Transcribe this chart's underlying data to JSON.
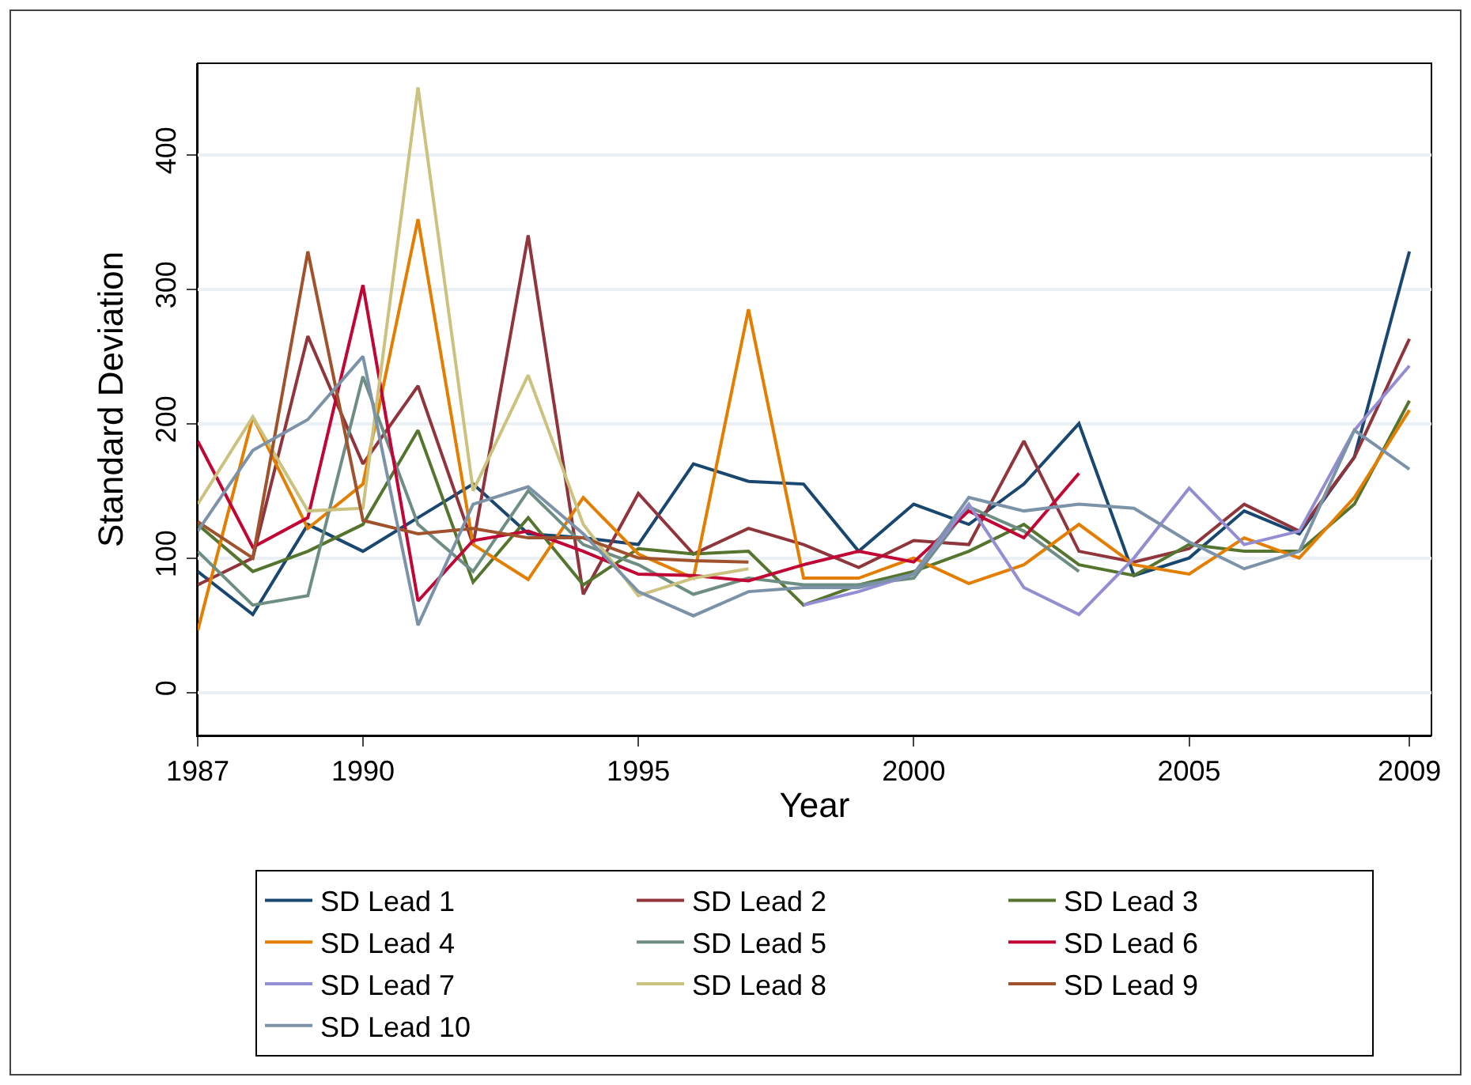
{
  "chart_data": {
    "type": "line",
    "xlabel": "Year",
    "ylabel": "Standard Deviation",
    "x": [
      1987,
      1988,
      1989,
      1990,
      1991,
      1992,
      1993,
      1994,
      1995,
      1996,
      1997,
      1998,
      1999,
      2000,
      2001,
      2002,
      2003,
      2004,
      2005,
      2006,
      2007,
      2008,
      2009
    ],
    "xlim": [
      1987,
      2009.4
    ],
    "xticks": [
      1987,
      1990,
      1995,
      2000,
      2005,
      2009
    ],
    "ylim": [
      -32,
      468
    ],
    "yticks": [
      0,
      100,
      200,
      300,
      400
    ],
    "grid": "y",
    "legend": "bottom",
    "marker": "none",
    "line_style": "solid",
    "series": [
      {
        "name": "SD Lead 1",
        "color": "#1a476f",
        "values": [
          90,
          58,
          125,
          105,
          130,
          155,
          118,
          115,
          110,
          170,
          157,
          155,
          105,
          140,
          125,
          155,
          200,
          87,
          100,
          135,
          118,
          175,
          328
        ]
      },
      {
        "name": "SD Lead 2",
        "color": "#90353b",
        "values": [
          80,
          100,
          265,
          170,
          228,
          110,
          340,
          73,
          148,
          103,
          122,
          110,
          93,
          113,
          110,
          187,
          105,
          97,
          107,
          140,
          120,
          175,
          263
        ]
      },
      {
        "name": "SD Lead 3",
        "color": "#55752f",
        "values": [
          125,
          90,
          105,
          125,
          195,
          82,
          130,
          80,
          107,
          103,
          105,
          65,
          80,
          90,
          105,
          125,
          95,
          87,
          110,
          105,
          105,
          140,
          217
        ]
      },
      {
        "name": "SD Lead 4",
        "color": "#e37e00",
        "values": [
          46,
          205,
          122,
          155,
          352,
          110,
          84,
          145,
          103,
          85,
          285,
          85,
          85,
          100,
          81,
          95,
          125,
          95,
          88,
          115,
          100,
          145,
          210
        ]
      },
      {
        "name": "SD Lead 5",
        "color": "#6e8e84",
        "values": [
          105,
          65,
          72,
          235,
          125,
          90,
          150,
          110,
          95,
          73,
          85,
          80,
          80,
          85,
          138,
          120,
          90,
          null,
          null,
          null,
          null,
          null,
          null
        ]
      },
      {
        "name": "SD Lead 6",
        "color": "#c10534",
        "values": [
          187,
          108,
          130,
          303,
          68,
          113,
          120,
          105,
          88,
          87,
          83,
          95,
          105,
          97,
          135,
          115,
          163,
          null,
          null,
          null,
          null,
          null,
          null
        ]
      },
      {
        "name": "SD Lead 7",
        "color": "#938dd2",
        "values": [
          null,
          null,
          null,
          null,
          null,
          null,
          null,
          null,
          null,
          null,
          null,
          65,
          75,
          88,
          140,
          78,
          58,
          100,
          152,
          110,
          120,
          195,
          243
        ]
      },
      {
        "name": "SD Lead 8",
        "color": "#cac27e",
        "values": [
          140,
          205,
          135,
          137,
          450,
          150,
          236,
          125,
          72,
          85,
          92,
          null,
          null,
          null,
          null,
          null,
          null,
          null,
          null,
          null,
          null,
          null,
          null
        ]
      },
      {
        "name": "SD Lead 9",
        "color": "#a0522d",
        "values": [
          127,
          100,
          328,
          128,
          118,
          122,
          115,
          115,
          100,
          98,
          97,
          null,
          null,
          null,
          null,
          null,
          null,
          null,
          null,
          null,
          null,
          null,
          null
        ]
      },
      {
        "name": "SD Lead 10",
        "color": "#7b92a8",
        "values": [
          120,
          180,
          203,
          250,
          50,
          140,
          153,
          118,
          75,
          57,
          75,
          78,
          78,
          88,
          145,
          135,
          140,
          137,
          112,
          92,
          105,
          195,
          166
        ]
      }
    ]
  }
}
